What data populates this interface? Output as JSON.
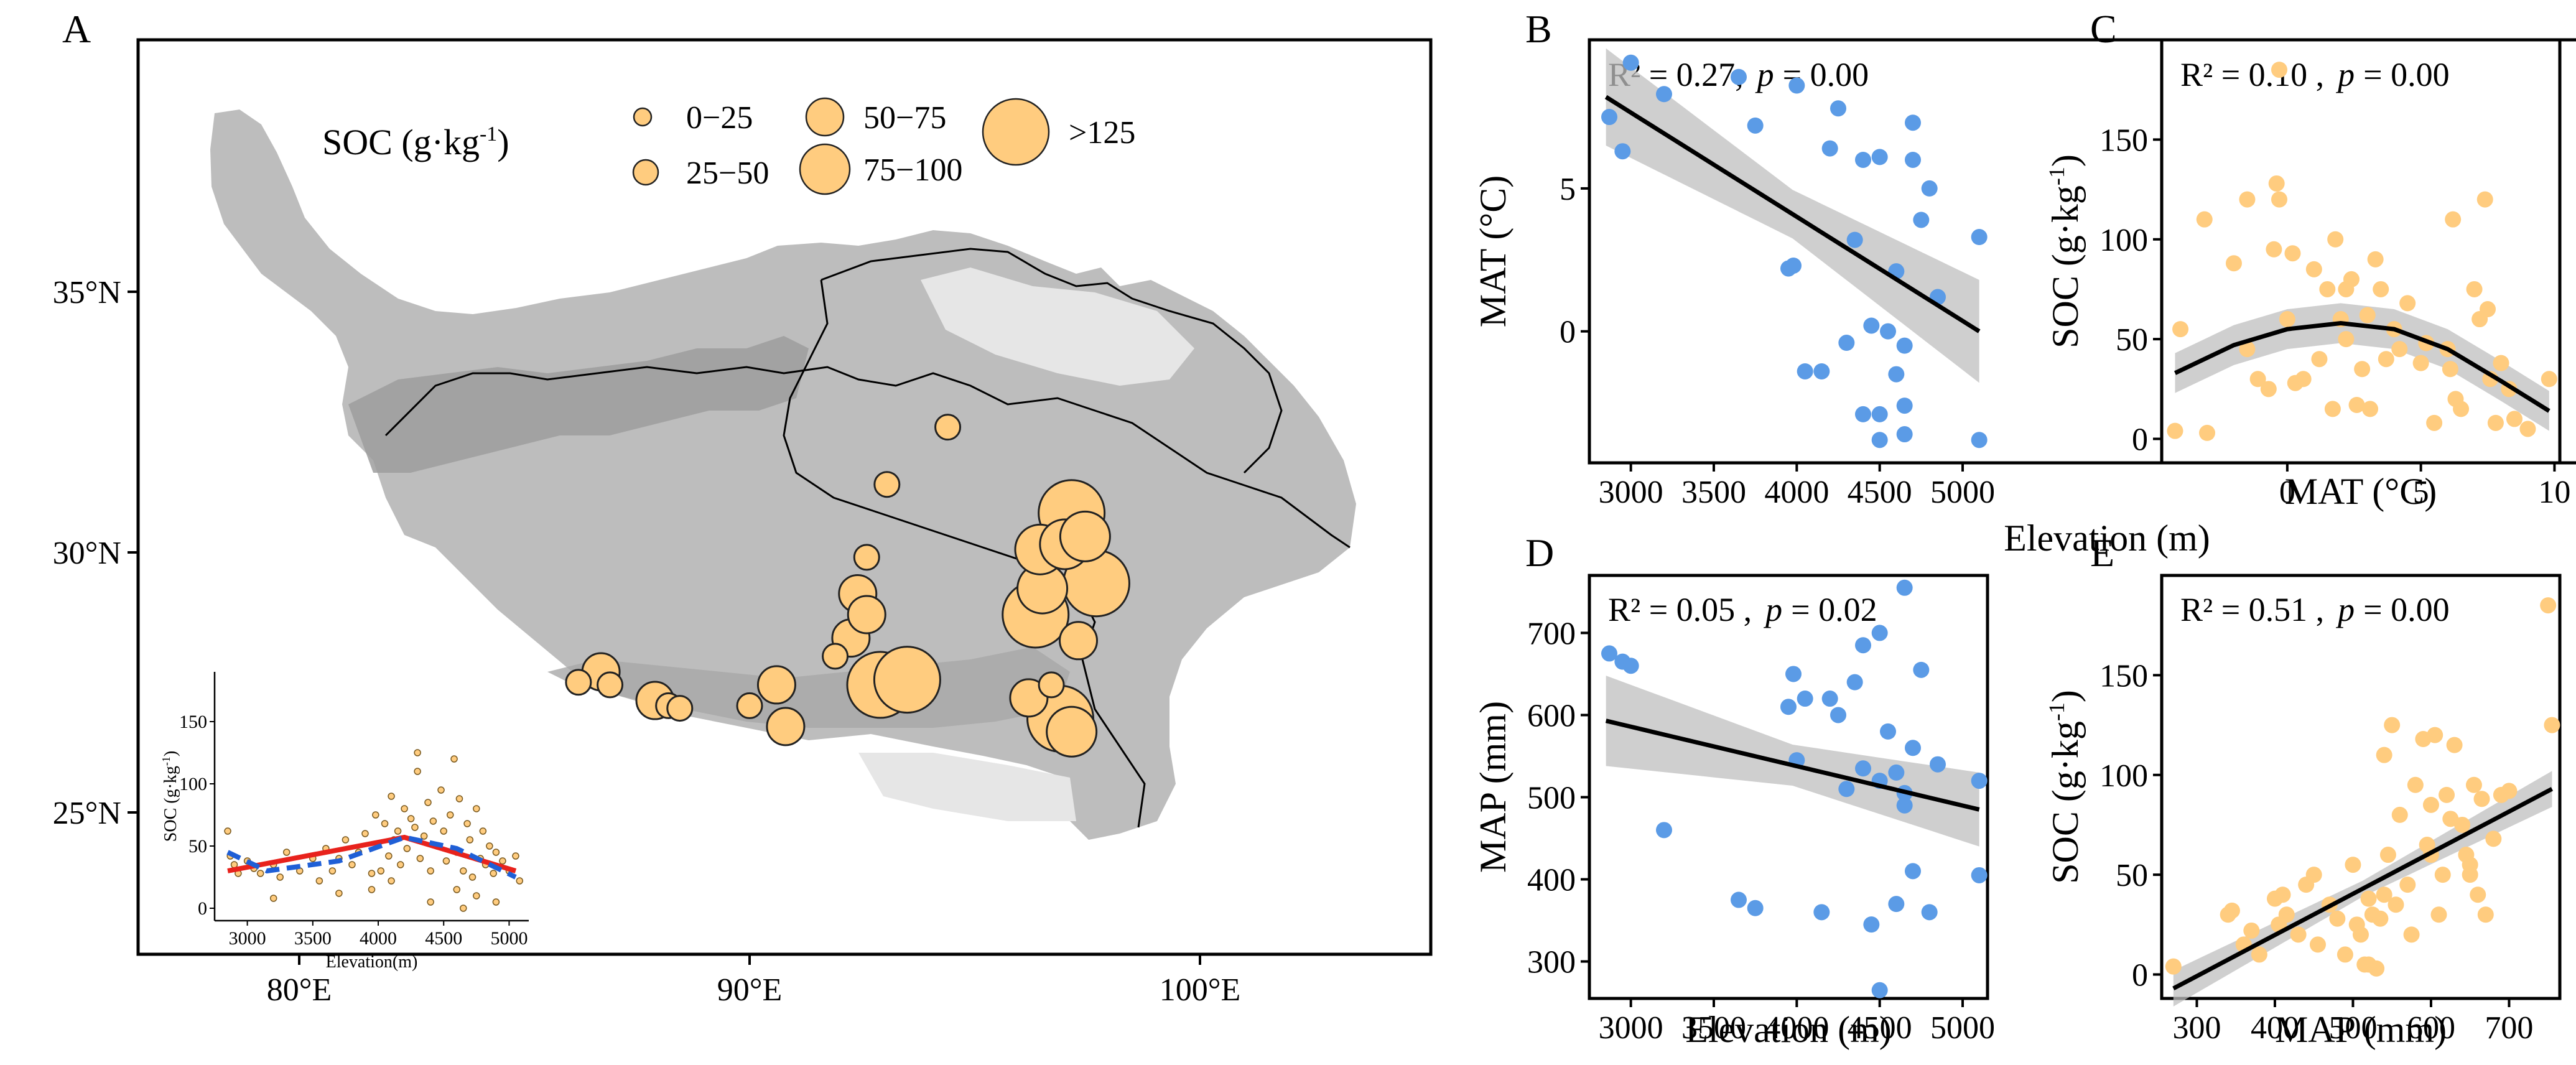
{
  "map": {
    "label": "A",
    "legend_title": "SOC (g·kg",
    "legend_title_sup": "-1",
    "legend_title_end": ")",
    "legend": [
      {
        "label": "0−25",
        "size": 1
      },
      {
        "label": "25−50",
        "size": 2
      },
      {
        "label": "50−75",
        "size": 3
      },
      {
        "label": "75−100",
        "size": 4
      },
      {
        "label": ">125",
        "size": 5
      }
    ],
    "lat_ticks": [
      "35°N",
      "30°N",
      "25°N"
    ],
    "lon_ticks": [
      "80°E",
      "90°E",
      "100°E"
    ],
    "colors": {
      "point_fill": "#FFCC7F",
      "point_edge": "#222222",
      "plateau": "#BDBDBD",
      "plateau_dark": "#9E9E9E",
      "plateau_light": "#E6E6E6"
    },
    "sites": [
      {
        "lon": 86.2,
        "lat": 27.5,
        "size": 2
      },
      {
        "lon": 86.7,
        "lat": 27.7,
        "size": 3
      },
      {
        "lon": 86.9,
        "lat": 27.45,
        "size": 2
      },
      {
        "lon": 87.9,
        "lat": 27.15,
        "size": 3
      },
      {
        "lon": 88.2,
        "lat": 27.05,
        "size": 2
      },
      {
        "lon": 88.45,
        "lat": 27.0,
        "size": 2
      },
      {
        "lon": 90.0,
        "lat": 27.05,
        "size": 2
      },
      {
        "lon": 90.6,
        "lat": 27.45,
        "size": 3
      },
      {
        "lon": 90.8,
        "lat": 26.65,
        "size": 3
      },
      {
        "lon": 91.9,
        "lat": 28.0,
        "size": 2
      },
      {
        "lon": 92.25,
        "lat": 28.35,
        "size": 3
      },
      {
        "lon": 92.4,
        "lat": 29.2,
        "size": 3
      },
      {
        "lon": 92.6,
        "lat": 28.8,
        "size": 3
      },
      {
        "lon": 92.6,
        "lat": 29.9,
        "size": 2
      },
      {
        "lon": 93.05,
        "lat": 31.3,
        "size": 2
      },
      {
        "lon": 94.4,
        "lat": 32.4,
        "size": 2
      },
      {
        "lon": 92.9,
        "lat": 27.45,
        "size": 5
      },
      {
        "lon": 93.5,
        "lat": 27.55,
        "size": 5
      },
      {
        "lon": 96.2,
        "lat": 27.2,
        "size": 3
      },
      {
        "lon": 96.7,
        "lat": 27.45,
        "size": 2
      },
      {
        "lon": 96.9,
        "lat": 26.8,
        "size": 5
      },
      {
        "lon": 97.15,
        "lat": 26.55,
        "size": 4
      },
      {
        "lon": 97.3,
        "lat": 28.3,
        "size": 3
      },
      {
        "lon": 96.35,
        "lat": 28.8,
        "size": 5
      },
      {
        "lon": 96.5,
        "lat": 29.3,
        "size": 4
      },
      {
        "lon": 96.45,
        "lat": 30.05,
        "size": 4
      },
      {
        "lon": 97.0,
        "lat": 30.15,
        "size": 4
      },
      {
        "lon": 97.15,
        "lat": 30.75,
        "size": 5
      },
      {
        "lon": 97.45,
        "lat": 30.3,
        "size": 4
      },
      {
        "lon": 97.7,
        "lat": 29.4,
        "size": 5
      }
    ]
  },
  "inset": {
    "xlabel": "Elevation(m)",
    "ylabel": "SOC (g·kg",
    "ylabel_sup": "-1",
    "ylabel_end": ")",
    "xticks": [
      3000,
      3500,
      4000,
      4500,
      5000
    ],
    "yticks": [
      0,
      50,
      100,
      150
    ],
    "xlim": [
      2750,
      5150
    ],
    "ylim": [
      -10,
      190
    ],
    "red_line": [
      [
        2850,
        30
      ],
      [
        4200,
        57
      ],
      [
        5050,
        30
      ]
    ],
    "blue_dash": [
      [
        2850,
        45
      ],
      [
        3150,
        30
      ],
      [
        3700,
        38
      ],
      [
        4200,
        57
      ],
      [
        4600,
        48
      ],
      [
        5050,
        25
      ]
    ],
    "points": [
      [
        2850,
        62
      ],
      [
        2870,
        42
      ],
      [
        2900,
        35
      ],
      [
        2930,
        28
      ],
      [
        3000,
        38
      ],
      [
        3050,
        32
      ],
      [
        3100,
        28
      ],
      [
        3200,
        35
      ],
      [
        3250,
        25
      ],
      [
        3300,
        45
      ],
      [
        3400,
        30
      ],
      [
        3500,
        40
      ],
      [
        3550,
        22
      ],
      [
        3600,
        48
      ],
      [
        3650,
        30
      ],
      [
        3700,
        40
      ],
      [
        3750,
        55
      ],
      [
        3800,
        35
      ],
      [
        3850,
        45
      ],
      [
        3900,
        60
      ],
      [
        3950,
        28
      ],
      [
        3980,
        75
      ],
      [
        4000,
        52
      ],
      [
        4020,
        30
      ],
      [
        4050,
        68
      ],
      [
        4080,
        42
      ],
      [
        4100,
        90
      ],
      [
        4120,
        55
      ],
      [
        4150,
        62
      ],
      [
        4170,
        35
      ],
      [
        4200,
        80
      ],
      [
        4220,
        48
      ],
      [
        4250,
        72
      ],
      [
        4280,
        65
      ],
      [
        4300,
        110
      ],
      [
        4320,
        40
      ],
      [
        4350,
        58
      ],
      [
        4380,
        85
      ],
      [
        4400,
        30
      ],
      [
        4420,
        70
      ],
      [
        4450,
        50
      ],
      [
        4480,
        95
      ],
      [
        4500,
        62
      ],
      [
        4520,
        38
      ],
      [
        4550,
        75
      ],
      [
        4580,
        120
      ],
      [
        4600,
        45
      ],
      [
        4620,
        88
      ],
      [
        4650,
        30
      ],
      [
        4680,
        68
      ],
      [
        4700,
        55
      ],
      [
        4720,
        25
      ],
      [
        4750,
        80
      ],
      [
        4780,
        40
      ],
      [
        4800,
        62
      ],
      [
        4820,
        35
      ],
      [
        4850,
        50
      ],
      [
        4880,
        28
      ],
      [
        4900,
        45
      ],
      [
        4950,
        38
      ],
      [
        5000,
        30
      ],
      [
        5050,
        42
      ],
      [
        5080,
        22
      ],
      [
        4300,
        125
      ],
      [
        4100,
        22
      ],
      [
        3950,
        15
      ],
      [
        4600,
        15
      ],
      [
        4750,
        10
      ],
      [
        3700,
        12
      ],
      [
        3200,
        8
      ],
      [
        4400,
        5
      ],
      [
        4650,
        0
      ],
      [
        4900,
        5
      ]
    ]
  },
  "panels": {
    "B": {
      "label": "B",
      "stat_r2": "R² = 0.27,",
      "stat_p_label": "p",
      "stat_p_value": "= 0.00",
      "xlabel": "Elevation (m)",
      "ylabel": "MAT (°C)",
      "xticks": [
        "3000",
        "3500",
        "4000",
        "4500",
        "5000"
      ],
      "yticks": [
        "0",
        "5"
      ]
    },
    "C": {
      "label": "C",
      "stat_r2": "R² = 0.10 ,",
      "stat_p_label": "p",
      "stat_p_value": "= 0.00",
      "xlabel": "MAT (°C)",
      "ylabel": "SOC (g·kg",
      "ylabel_sup": "-1",
      "ylabel_end": ")",
      "xticks": [
        "0",
        "5",
        "10"
      ],
      "yticks": [
        "0",
        "50",
        "100",
        "150"
      ]
    },
    "D": {
      "label": "D",
      "stat_r2": "R² = 0.05 ,",
      "stat_p_label": "p",
      "stat_p_value": "= 0.02",
      "xlabel": "Elevation (m)",
      "ylabel": "MAP (mm)",
      "xticks": [
        "3000",
        "3500",
        "4000",
        "4500",
        "5000"
      ],
      "yticks": [
        "300",
        "400",
        "500",
        "600",
        "700"
      ]
    },
    "E": {
      "label": "E",
      "stat_r2": "R² = 0.51 ,",
      "stat_p_label": "p",
      "stat_p_value": "= 0.00",
      "xlabel": "MAP (mm)",
      "ylabel": "SOC (g·kg",
      "ylabel_sup": "-1",
      "ylabel_end": ")",
      "xticks": [
        "300",
        "400",
        "500",
        "600",
        "700"
      ],
      "yticks": [
        "0",
        "50",
        "100",
        "150"
      ]
    }
  },
  "chart_data": [
    {
      "type": "scatter",
      "panel": "B",
      "title": "",
      "xlabel": "Elevation (m)",
      "ylabel": "MAT (°C)",
      "xlim": [
        2750,
        5150
      ],
      "ylim": [
        -4.6,
        10.2
      ],
      "point_color": "#5B9BE6",
      "fit": {
        "kind": "linear",
        "x": [
          2850,
          5100
        ],
        "y": [
          8.2,
          0.0
        ],
        "ci_halfwidth": [
          1.7,
          0.85,
          1.8
        ]
      },
      "x": [
        2870,
        2950,
        3000,
        3200,
        3650,
        3750,
        3950,
        3980,
        4000,
        4050,
        4150,
        4200,
        4250,
        4300,
        4350,
        4400,
        4400,
        4450,
        4500,
        4500,
        4500,
        4550,
        4600,
        4600,
        4650,
        4650,
        4650,
        4700,
        4700,
        4750,
        4800,
        4850,
        5100,
        5100
      ],
      "y": [
        7.5,
        6.3,
        9.4,
        8.3,
        8.9,
        7.2,
        2.2,
        2.3,
        8.6,
        -1.4,
        -1.4,
        6.4,
        7.8,
        -0.4,
        3.2,
        -2.9,
        6.0,
        0.2,
        6.1,
        -2.9,
        -3.8,
        0.0,
        2.1,
        -1.5,
        -0.5,
        -2.6,
        -3.6,
        7.3,
        6.0,
        3.9,
        5.0,
        1.2,
        3.3,
        -3.8
      ]
    },
    {
      "type": "scatter",
      "panel": "C",
      "title": "",
      "xlabel": "MAT (°C)",
      "ylabel": "SOC (g·kg-1)",
      "xlim": [
        -4.7,
        10.2
      ],
      "ylim": [
        -12,
        200
      ],
      "point_color": "#FFCC7F",
      "fit": {
        "kind": "quadratic",
        "x": [
          -4.2,
          -2,
          0,
          2,
          4,
          6,
          8,
          9.8
        ],
        "y": [
          33,
          47,
          55,
          58,
          55,
          45,
          29,
          14
        ],
        "ci_halfwidth": 10
      },
      "x": [
        -4.2,
        -3.1,
        -3.0,
        -2.0,
        -1.5,
        -1.5,
        -1.1,
        -0.7,
        -0.5,
        -0.4,
        -0.3,
        -0.3,
        0.2,
        0.3,
        0.6,
        1.0,
        1.2,
        1.5,
        1.7,
        1.8,
        2.0,
        2.2,
        2.4,
        2.6,
        2.8,
        3.0,
        3.1,
        3.3,
        3.5,
        3.7,
        4.0,
        4.2,
        4.5,
        5.0,
        5.2,
        5.5,
        6.0,
        6.2,
        6.3,
        6.5,
        7.0,
        7.2,
        7.4,
        7.6,
        7.8,
        8.0,
        8.3,
        8.5,
        9.0,
        9.8,
        -4.0,
        0.0,
        2.2,
        6.1,
        7.5
      ],
      "y": [
        4,
        110,
        3,
        88,
        120,
        45,
        30,
        25,
        95,
        128,
        185,
        120,
        93,
        28,
        30,
        85,
        40,
        75,
        15,
        100,
        60,
        50,
        80,
        17,
        35,
        62,
        15,
        90,
        75,
        40,
        55,
        45,
        68,
        38,
        48,
        8,
        45,
        110,
        20,
        15,
        75,
        60,
        120,
        30,
        8,
        38,
        25,
        10,
        5,
        30,
        55,
        60,
        75,
        35,
        65
      ]
    },
    {
      "type": "scatter",
      "panel": "D",
      "title": "",
      "xlabel": "Elevation (m)",
      "ylabel": "MAP (mm)",
      "xlim": [
        2750,
        5150
      ],
      "ylim": [
        255,
        770
      ],
      "point_color": "#5B9BE6",
      "fit": {
        "kind": "linear",
        "x": [
          2850,
          5100
        ],
        "y": [
          593,
          485
        ],
        "ci_halfwidth": [
          55,
          25,
          45
        ]
      },
      "x": [
        2870,
        2950,
        3000,
        3200,
        3650,
        3750,
        3950,
        3980,
        4000,
        4050,
        4150,
        4200,
        4250,
        4300,
        4350,
        4400,
        4400,
        4450,
        4500,
        4500,
        4500,
        4550,
        4600,
        4600,
        4650,
        4650,
        4650,
        4700,
        4700,
        4750,
        4800,
        4850,
        5100,
        5100
      ],
      "y": [
        675,
        665,
        660,
        460,
        375,
        365,
        610,
        650,
        545,
        620,
        360,
        620,
        600,
        510,
        640,
        685,
        535,
        345,
        700,
        520,
        265,
        580,
        370,
        530,
        505,
        490,
        755,
        560,
        410,
        655,
        360,
        540,
        520,
        405
      ]
    },
    {
      "type": "scatter",
      "panel": "E",
      "title": "",
      "xlabel": "MAP (mm)",
      "ylabel": "SOC (g·kg-1)",
      "xlim": [
        255,
        765
      ],
      "ylim": [
        -12,
        200
      ],
      "point_color": "#FFCC7F",
      "fit": {
        "kind": "linear",
        "x": [
          270,
          755
        ],
        "y": [
          -7,
          93
        ],
        "ci_halfwidth": [
          9,
          4,
          9
        ]
      },
      "x": [
        270,
        340,
        345,
        360,
        370,
        380,
        400,
        405,
        410,
        415,
        430,
        440,
        450,
        455,
        470,
        480,
        490,
        500,
        505,
        510,
        515,
        520,
        525,
        530,
        535,
        540,
        545,
        550,
        555,
        560,
        570,
        575,
        580,
        590,
        595,
        600,
        605,
        610,
        615,
        620,
        625,
        630,
        640,
        645,
        650,
        655,
        660,
        665,
        670,
        680,
        690,
        700,
        750,
        755,
        520,
        540,
        600,
        650
      ],
      "y": [
        4,
        30,
        32,
        15,
        22,
        10,
        38,
        25,
        40,
        30,
        20,
        45,
        50,
        15,
        35,
        28,
        10,
        55,
        25,
        20,
        5,
        38,
        30,
        3,
        28,
        110,
        60,
        125,
        35,
        80,
        45,
        20,
        95,
        118,
        65,
        60,
        120,
        30,
        50,
        90,
        78,
        115,
        75,
        60,
        50,
        95,
        40,
        88,
        30,
        68,
        90,
        92,
        185,
        125,
        5,
        40,
        85,
        55
      ]
    }
  ]
}
